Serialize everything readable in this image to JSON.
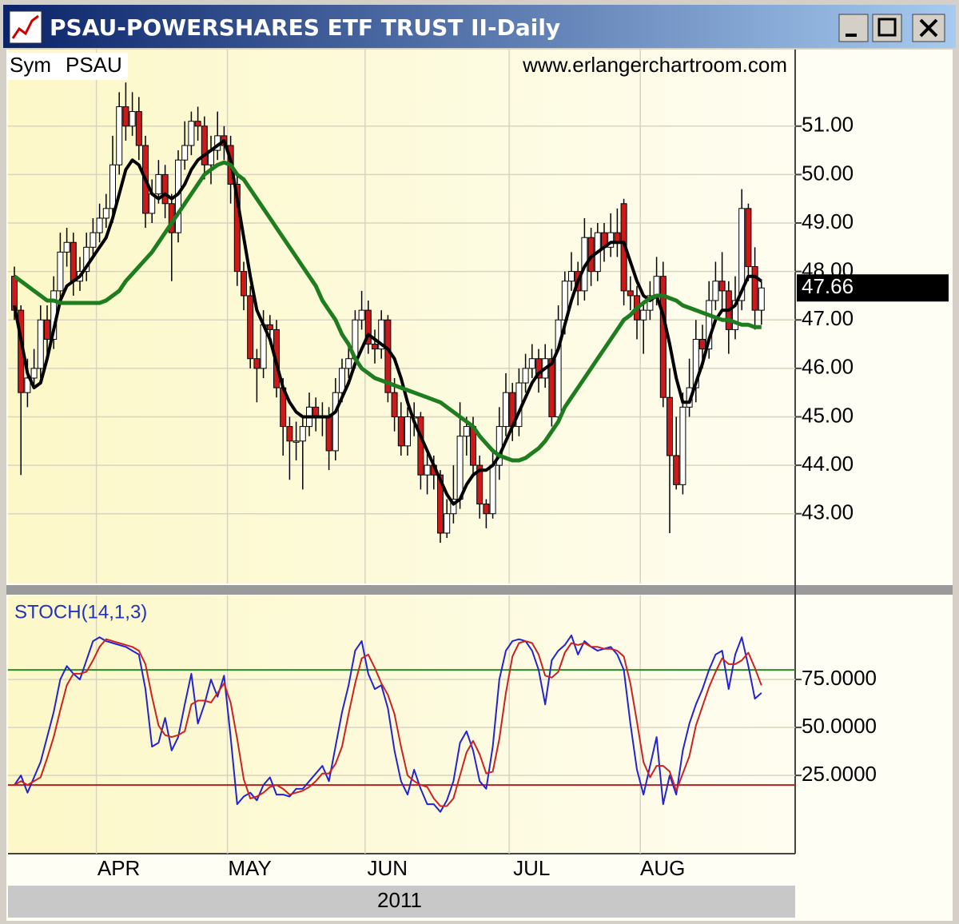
{
  "window": {
    "title": "PSAU-POWERSHARES ETF TRUST II-Daily"
  },
  "chart_data": [
    {
      "type": "candlestick",
      "symbol_label": "Sym",
      "symbol": "PSAU",
      "source": "www.erlangerchartroom.com",
      "x_group_label": "2011",
      "categories": [
        null,
        null,
        null,
        null,
        null,
        null,
        null,
        null,
        null,
        null,
        null,
        null,
        null,
        "APR",
        null,
        null,
        null,
        null,
        null,
        null,
        null,
        null,
        null,
        null,
        null,
        null,
        null,
        null,
        null,
        null,
        null,
        null,
        null,
        "MAY",
        null,
        null,
        null,
        null,
        null,
        null,
        null,
        null,
        null,
        null,
        null,
        null,
        null,
        null,
        null,
        null,
        null,
        null,
        null,
        null,
        "JUN",
        null,
        null,
        null,
        null,
        null,
        null,
        null,
        null,
        null,
        null,
        null,
        null,
        null,
        null,
        null,
        null,
        null,
        null,
        null,
        null,
        null,
        "JUL",
        null,
        null,
        null,
        null,
        null,
        null,
        null,
        null,
        null,
        null,
        null,
        null,
        null,
        null,
        null,
        null,
        null,
        null,
        null,
        "AUG",
        null,
        null,
        null,
        null,
        null,
        null,
        null,
        null,
        null,
        null,
        null,
        null,
        null,
        null,
        null,
        null,
        null,
        null
      ],
      "open": [
        47.9,
        47.2,
        45.5,
        45.8,
        46.0,
        47.0,
        46.6,
        47.6,
        48.4,
        48.6,
        47.8,
        48.0,
        48.5,
        48.8,
        49.1,
        49.3,
        50.2,
        51.4,
        51.0,
        51.3,
        50.6,
        49.2,
        49.6,
        50.0,
        49.4,
        48.8,
        50.3,
        50.6,
        51.1,
        51.0,
        50.2,
        50.5,
        50.8,
        50.6,
        49.8,
        48.0,
        47.5,
        46.2,
        46.0,
        46.9,
        46.8,
        45.6,
        44.8,
        44.5,
        44.5,
        44.8,
        45.2,
        45.0,
        45.0,
        44.3,
        45.5,
        46.0,
        46.2,
        47.0,
        47.2,
        46.5,
        46.4,
        47.0,
        45.5,
        45.0,
        44.4,
        45.0,
        45.0,
        43.8,
        44.0,
        43.8,
        42.6,
        43.0,
        43.3,
        44.6,
        44.8,
        44.0,
        43.2,
        43.0,
        44.0,
        44.8,
        45.5,
        44.8,
        45.7,
        46.0,
        46.2,
        45.8,
        46.2,
        45.0,
        47.0,
        47.8,
        48.0,
        47.6,
        48.7,
        48.0,
        48.8,
        48.5,
        48.8,
        49.4,
        47.6,
        47.5,
        47.0,
        47.2,
        47.5,
        47.9,
        45.4,
        44.2,
        43.6,
        45.2,
        45.6,
        46.6,
        46.4,
        47.4,
        47.8,
        47.6,
        46.8,
        47.4,
        49.3,
        48.1,
        47.2
      ],
      "high": [
        48.1,
        47.3,
        46.2,
        46.4,
        47.3,
        47.3,
        47.9,
        48.8,
        48.9,
        48.8,
        48.3,
        48.8,
        49.1,
        49.4,
        49.6,
        50.8,
        51.7,
        51.9,
        51.7,
        51.6,
        50.8,
        49.9,
        50.3,
        50.2,
        49.6,
        50.5,
        51.1,
        51.3,
        51.4,
        51.2,
        50.8,
        51.3,
        51.0,
        50.8,
        50.0,
        48.2,
        47.7,
        46.4,
        47.2,
        47.1,
        47.0,
        45.8,
        45.0,
        44.9,
        45.0,
        45.5,
        45.4,
        45.3,
        45.2,
        45.8,
        46.2,
        46.5,
        47.2,
        47.6,
        47.4,
        46.8,
        47.2,
        47.1,
        45.8,
        45.3,
        45.2,
        45.3,
        45.1,
        44.3,
        44.2,
        43.9,
        43.3,
        44.0,
        45.3,
        45.0,
        45.0,
        44.2,
        43.3,
        44.3,
        45.2,
        45.9,
        45.7,
        46.0,
        46.3,
        46.5,
        46.4,
        46.5,
        46.4,
        47.3,
        48.0,
        48.4,
        48.2,
        49.1,
        48.9,
        49.0,
        49.0,
        49.2,
        49.3,
        49.5,
        47.9,
        47.7,
        47.4,
        47.8,
        48.3,
        48.2,
        46.0,
        45.0,
        45.5,
        46.2,
        47.0,
        46.9,
        47.8,
        48.2,
        48.4,
        47.8,
        47.9,
        49.7,
        49.4,
        48.5,
        47.8
      ],
      "low": [
        47.0,
        43.8,
        45.2,
        45.6,
        45.8,
        46.3,
        46.4,
        47.4,
        48.1,
        47.5,
        47.6,
        47.8,
        48.3,
        48.6,
        48.9,
        49.0,
        50.0,
        50.7,
        50.8,
        50.3,
        48.9,
        49.0,
        49.4,
        49.1,
        47.8,
        48.6,
        50.1,
        50.4,
        50.7,
        49.9,
        49.8,
        50.3,
        50.3,
        49.4,
        47.7,
        47.2,
        46.0,
        45.3,
        45.8,
        46.5,
        45.4,
        44.2,
        43.7,
        44.1,
        43.5,
        44.6,
        44.7,
        44.6,
        43.9,
        44.1,
        45.3,
        45.8,
        46.0,
        46.8,
        46.3,
        46.1,
        46.2,
        45.3,
        44.7,
        44.2,
        44.2,
        44.6,
        43.5,
        43.4,
        43.5,
        42.4,
        42.5,
        42.8,
        43.1,
        44.2,
        43.8,
        42.9,
        42.7,
        42.9,
        43.7,
        44.6,
        44.5,
        44.6,
        45.5,
        45.8,
        45.5,
        45.6,
        44.8,
        44.9,
        46.7,
        47.6,
        47.3,
        47.4,
        47.7,
        47.8,
        48.2,
        48.3,
        48.3,
        47.3,
        47.2,
        46.6,
        46.3,
        47.0,
        47.3,
        45.2,
        42.6,
        43.5,
        43.4,
        45.0,
        45.3,
        46.0,
        46.2,
        47.2,
        47.2,
        46.3,
        46.6,
        47.2,
        47.8,
        46.8,
        46.9
      ],
      "close": [
        47.2,
        45.5,
        45.8,
        46.0,
        47.0,
        46.6,
        47.6,
        48.4,
        48.6,
        47.8,
        48.0,
        48.5,
        48.8,
        49.1,
        49.3,
        50.2,
        51.4,
        51.0,
        51.3,
        50.6,
        49.2,
        49.6,
        50.0,
        49.4,
        48.8,
        50.3,
        50.6,
        51.1,
        51.0,
        50.2,
        50.5,
        50.8,
        50.6,
        49.8,
        48.0,
        47.5,
        46.2,
        46.0,
        46.9,
        46.8,
        45.6,
        44.8,
        44.5,
        44.5,
        44.8,
        45.2,
        45.0,
        45.0,
        44.3,
        45.5,
        46.0,
        46.2,
        47.0,
        47.2,
        46.5,
        46.4,
        47.0,
        45.5,
        45.0,
        44.4,
        45.0,
        45.0,
        43.8,
        44.0,
        43.8,
        42.6,
        43.0,
        43.3,
        44.6,
        44.8,
        44.0,
        43.2,
        43.0,
        44.0,
        44.8,
        45.5,
        44.8,
        45.7,
        46.0,
        46.2,
        45.8,
        46.2,
        45.0,
        47.0,
        47.8,
        48.0,
        47.6,
        48.7,
        48.0,
        48.8,
        48.5,
        48.8,
        48.6,
        47.6,
        47.5,
        47.0,
        47.2,
        47.5,
        47.9,
        45.4,
        44.2,
        43.6,
        45.2,
        45.6,
        46.6,
        46.4,
        47.4,
        47.8,
        47.6,
        46.8,
        47.4,
        49.3,
        48.1,
        47.2,
        47.66
      ],
      "up_color": "#ffffff",
      "down_color": "#cc1a1a",
      "overlays": [
        {
          "color": "#000000",
          "values": [
            47.3,
            46.6,
            45.9,
            45.6,
            45.7,
            46.2,
            46.8,
            47.4,
            47.7,
            47.8,
            47.9,
            48.1,
            48.3,
            48.5,
            48.7,
            49.1,
            49.6,
            50.1,
            50.3,
            50.2,
            49.9,
            49.6,
            49.5,
            49.6,
            49.5,
            49.6,
            49.8,
            50.1,
            50.3,
            50.4,
            50.5,
            50.6,
            50.7,
            50.3,
            49.5,
            48.7,
            47.9,
            47.2,
            46.9,
            46.6,
            46.1,
            45.6,
            45.3,
            45.1,
            45.0,
            45.0,
            45.0,
            45.0,
            45.0,
            45.1,
            45.4,
            45.7,
            46.1,
            46.4,
            46.7,
            46.6,
            46.5,
            46.4,
            46.2,
            45.8,
            45.3,
            44.9,
            44.6,
            44.3,
            44.0,
            43.7,
            43.4,
            43.2,
            43.3,
            43.6,
            43.8,
            43.9,
            43.9,
            44.0,
            44.2,
            44.5,
            44.8,
            45.1,
            45.4,
            45.7,
            45.9,
            46.0,
            46.1,
            46.4,
            46.9,
            47.4,
            47.8,
            48.1,
            48.3,
            48.4,
            48.5,
            48.6,
            48.6,
            48.6,
            48.2,
            47.8,
            47.5,
            47.4,
            47.5,
            47.1,
            46.5,
            45.8,
            45.3,
            45.3,
            45.7,
            46.1,
            46.6,
            47.0,
            47.2,
            47.2,
            47.3,
            47.6,
            47.9,
            47.9,
            47.8
          ]
        },
        {
          "color": "#1e7d1e",
          "values": [
            47.9,
            47.8,
            47.7,
            47.6,
            47.5,
            47.4,
            47.4,
            47.35,
            47.35,
            47.35,
            47.35,
            47.35,
            47.35,
            47.35,
            47.4,
            47.5,
            47.6,
            47.8,
            47.95,
            48.1,
            48.25,
            48.4,
            48.6,
            48.8,
            49.0,
            49.2,
            49.4,
            49.6,
            49.8,
            50.0,
            50.1,
            50.2,
            50.25,
            50.2,
            50.0,
            49.9,
            49.7,
            49.5,
            49.3,
            49.1,
            48.9,
            48.7,
            48.5,
            48.3,
            48.1,
            47.9,
            47.7,
            47.4,
            47.2,
            47.0,
            46.7,
            46.5,
            46.2,
            46.0,
            45.9,
            45.8,
            45.75,
            45.7,
            45.65,
            45.6,
            45.55,
            45.5,
            45.45,
            45.4,
            45.35,
            45.3,
            45.2,
            45.1,
            45.0,
            44.9,
            44.8,
            44.6,
            44.45,
            44.3,
            44.2,
            44.15,
            44.1,
            44.1,
            44.15,
            44.25,
            44.35,
            44.5,
            44.7,
            44.9,
            45.2,
            45.4,
            45.6,
            45.8,
            46.0,
            46.2,
            46.4,
            46.6,
            46.8,
            47.0,
            47.1,
            47.25,
            47.35,
            47.45,
            47.5,
            47.5,
            47.45,
            47.4,
            47.3,
            47.25,
            47.2,
            47.15,
            47.1,
            47.05,
            47.0,
            47.0,
            46.95,
            46.9,
            46.9,
            46.85,
            46.85
          ]
        }
      ],
      "last_price": 47.66,
      "ylim": [
        41.56,
        52.58
      ],
      "yticks": [
        {
          "value": 43,
          "label": "43.00"
        },
        {
          "value": 44,
          "label": "44.00"
        },
        {
          "value": 45,
          "label": "45.00"
        },
        {
          "value": 46,
          "label": "46.00"
        },
        {
          "value": 47,
          "label": "47.00"
        },
        {
          "value": 48,
          "label": "48.00"
        },
        {
          "value": 49,
          "label": "49.00"
        },
        {
          "value": 50,
          "label": "50.00"
        },
        {
          "value": 51,
          "label": "51.00"
        }
      ],
      "grid": true
    },
    {
      "type": "line",
      "title": "STOCH(14,1,3)",
      "series": [
        {
          "color": "#2323d6",
          "values": [
            20,
            25,
            16,
            24,
            32,
            45,
            58,
            75,
            82,
            78,
            75,
            85,
            95,
            97,
            95,
            94,
            93,
            92,
            90,
            88,
            70,
            40,
            42,
            55,
            38,
            45,
            62,
            78,
            52,
            62,
            75,
            66,
            77,
            45,
            10,
            14,
            16,
            12,
            20,
            24,
            15,
            15,
            14,
            18,
            18,
            22,
            26,
            30,
            22,
            40,
            58,
            72,
            90,
            95,
            78,
            70,
            72,
            60,
            38,
            22,
            15,
            28,
            18,
            10,
            10,
            6,
            12,
            22,
            42,
            48,
            38,
            22,
            18,
            40,
            75,
            90,
            95,
            96,
            95,
            90,
            80,
            62,
            85,
            90,
            93,
            98,
            88,
            95,
            92,
            90,
            91,
            92,
            88,
            80,
            52,
            28,
            15,
            30,
            45,
            10,
            25,
            15,
            38,
            52,
            62,
            70,
            80,
            88,
            90,
            70,
            88,
            97,
            82,
            65,
            68
          ]
        },
        {
          "color": "#cc2222",
          "values": [
            20,
            22,
            20,
            22,
            24,
            34,
            45,
            59,
            72,
            78,
            78,
            79,
            85,
            92,
            96,
            95,
            94,
            93,
            92,
            90,
            83,
            66,
            51,
            46,
            45,
            46,
            48,
            62,
            64,
            64,
            63,
            68,
            73,
            63,
            44,
            23,
            13,
            14,
            16,
            19,
            20,
            18,
            15,
            16,
            17,
            19,
            22,
            26,
            26,
            31,
            40,
            57,
            73,
            86,
            88,
            81,
            73,
            67,
            57,
            40,
            25,
            22,
            20,
            19,
            13,
            9,
            9,
            13,
            25,
            37,
            43,
            36,
            26,
            27,
            44,
            68,
            87,
            94,
            95,
            94,
            88,
            77,
            76,
            79,
            89,
            94,
            93,
            94,
            92,
            92,
            91,
            91,
            90,
            87,
            73,
            53,
            32,
            24,
            30,
            30,
            27,
            17,
            26,
            35,
            51,
            61,
            71,
            79,
            86,
            83,
            83,
            85,
            89,
            81,
            72
          ]
        }
      ],
      "reference_lines": [
        {
          "value": 80,
          "color": "#2a8a2a"
        },
        {
          "value": 20,
          "color": "#b02222"
        }
      ],
      "ylim": [
        -15.8,
        118.8
      ],
      "yticks": [
        {
          "value": 25,
          "label": "25.0000"
        },
        {
          "value": 50,
          "label": "50.0000"
        },
        {
          "value": 75,
          "label": "75.0000"
        }
      ],
      "grid": true
    }
  ]
}
